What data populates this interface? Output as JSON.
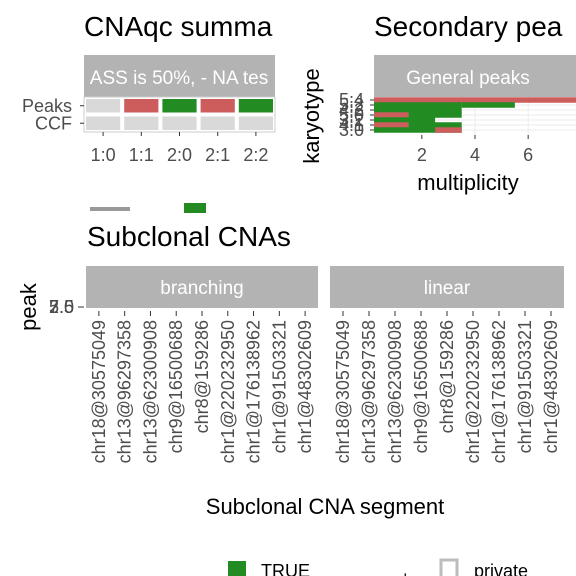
{
  "chart_data": [
    {
      "type": "heatmap",
      "title": "CNAqc summa",
      "strip": "ASS is 50%, - NA tes",
      "x_categories": [
        "1:0",
        "1:1",
        "2:0",
        "2:1",
        "2:2"
      ],
      "y_categories": [
        "Peaks",
        "CCF"
      ],
      "cells": [
        {
          "row": "Peaks",
          "col": "1:0",
          "value": "NA"
        },
        {
          "row": "Peaks",
          "col": "1:1",
          "value": "FALSE"
        },
        {
          "row": "Peaks",
          "col": "2:0",
          "value": "TRUE"
        },
        {
          "row": "Peaks",
          "col": "2:1",
          "value": "FALSE"
        },
        {
          "row": "Peaks",
          "col": "2:2",
          "value": "TRUE"
        },
        {
          "row": "CCF",
          "col": "1:0",
          "value": "NA"
        },
        {
          "row": "CCF",
          "col": "1:1",
          "value": "NA"
        },
        {
          "row": "CCF",
          "col": "2:0",
          "value": "NA"
        },
        {
          "row": "CCF",
          "col": "2:1",
          "value": "NA"
        },
        {
          "row": "CCF",
          "col": "2:2",
          "value": "NA"
        }
      ],
      "colors": {
        "TRUE": "#228b22",
        "FALSE": "#cd5c5c",
        "NA": "#d9d9d9"
      }
    },
    {
      "type": "bar",
      "title": "Secondary pea",
      "strip": "General peaks",
      "xlabel": "multiplicity",
      "ylabel": "karyotype",
      "x_ticks": [
        2,
        4,
        6
      ],
      "xlim": [
        0.2,
        7.8
      ],
      "y_tick_labels": [
        "5:4",
        "5:2",
        "4:2",
        "5:0",
        "3:2",
        "4:1",
        "3:0"
      ],
      "rows": [
        {
          "karyotype": "5:4",
          "segments": [
            {
              "from": 0.2,
              "to": 7.8,
              "result": "FALSE"
            }
          ]
        },
        {
          "karyotype": "5:2",
          "segments": [
            {
              "from": 0.2,
              "to": 3.5,
              "result": "TRUE"
            },
            {
              "from": 3.5,
              "to": 5.5,
              "result": "TRUE"
            }
          ]
        },
        {
          "karyotype": "4:2",
          "segments": [
            {
              "from": 0.2,
              "to": 3.5,
              "result": "TRUE"
            }
          ]
        },
        {
          "karyotype": "5:0",
          "segments": [
            {
              "from": 0.2,
              "to": 1.5,
              "result": "FALSE"
            },
            {
              "from": 1.5,
              "to": 3.5,
              "result": "TRUE"
            }
          ]
        },
        {
          "karyotype": "3:2",
          "segments": [
            {
              "from": 0.2,
              "to": 2.5,
              "result": "TRUE"
            }
          ]
        },
        {
          "karyotype": "4:1",
          "segments": [
            {
              "from": 0.2,
              "to": 1.5,
              "result": "FALSE"
            },
            {
              "from": 1.5,
              "to": 3.5,
              "result": "TRUE"
            }
          ]
        },
        {
          "karyotype": "3:0",
          "segments": [
            {
              "from": 0.2,
              "to": 3.5,
              "result": "TRUE"
            },
            {
              "from": 2.5,
              "to": 3.5,
              "result": "FALSE"
            }
          ]
        }
      ],
      "colors": {
        "TRUE": "#228b22",
        "FALSE": "#cd5c5c"
      }
    },
    {
      "type": "scatter",
      "title": "Subclonal CNAs",
      "xlabel": "Subclonal CNA segment",
      "ylabel": "peak",
      "facets": [
        "branching",
        "linear"
      ],
      "y_tick_labels": [
        "2.5",
        "5.0",
        "7.5"
      ],
      "categories": [
        "chr18@30575049",
        "chr13@96297358",
        "chr13@62300908",
        "chr9@16500688",
        "chr8@159286",
        "chr1@220232950",
        "chr1@176138962",
        "chr1@91503321",
        "chr1@48302609"
      ]
    }
  ],
  "legend": {
    "items": [
      {
        "label": "TRUE",
        "color": "#228b22"
      },
      {
        "label": "+",
        "color": ""
      },
      {
        "label": "private",
        "color": ""
      }
    ]
  }
}
